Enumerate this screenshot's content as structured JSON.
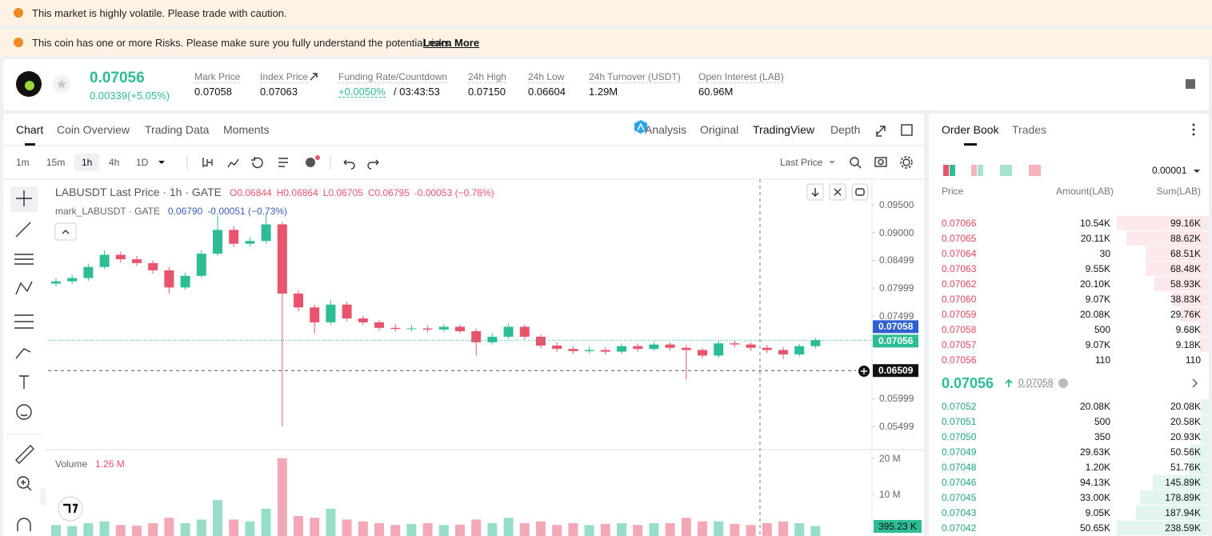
{
  "banners": {
    "volatility": "This market is highly volatile. Please trade with caution.",
    "risk": "This coin has one or more Risks. Please make sure you fully understand the potential risks.",
    "learn_more": "Learn More"
  },
  "ticker": {
    "price": "0.07056",
    "change": "0.00339(+5.05%)",
    "stats": [
      {
        "label": "Mark Price",
        "value": "0.07058"
      },
      {
        "label": "Index Price",
        "value": "0.07063"
      },
      {
        "label": "Funding Rate/Countdown",
        "value": "+0.0050%",
        "countdown": "/ 03:43:53"
      },
      {
        "label": "24h High",
        "value": "0.07150"
      },
      {
        "label": "24h Low",
        "value": "0.06604"
      },
      {
        "label": "24h Turnover (USDT)",
        "value": "1.29M"
      },
      {
        "label": "Open Interest (LAB)",
        "value": "60.96M"
      }
    ]
  },
  "chart_tabs": [
    "Chart",
    "Coin Overview",
    "Trading Data",
    "Moments"
  ],
  "view_tabs": [
    "Analysis",
    "Original",
    "TradingView",
    "Depth"
  ],
  "intervals": [
    "1m",
    "15m",
    "1h",
    "4h",
    "1D"
  ],
  "price_source": "Last Price",
  "chart": {
    "type": "candlestick",
    "legend": {
      "symbol": "LABUSDT Last Price · 1h · GATE",
      "open": "O0.06844",
      "high": "H0.06864",
      "low": "L0.06705",
      "close": "C0.06795",
      "change": "-0.00053 (−0.76%)"
    },
    "mark_legend": {
      "symbol": "mark_LABUSDT · GATE",
      "value": "0.06790",
      "change": "-0.00051 (−0.73%)"
    },
    "up_color": "#2dbd96",
    "down_color": "#e8546b",
    "ylim": [
      0.0511,
      0.0985
    ],
    "yticks": [
      {
        "value": 0.095,
        "label": "0.09500"
      },
      {
        "value": 0.09,
        "label": "0.09000"
      },
      0.08499,
      0.07999,
      0.07499,
      0.05999,
      0.05499
    ],
    "open": [
      0.0808,
      0.0812,
      0.0818,
      0.0838,
      0.086,
      0.0852,
      0.0845,
      0.0832,
      0.0801,
      0.0822,
      0.0862,
      0.0905,
      0.088,
      0.0885,
      0.0915,
      0.079,
      0.0765,
      0.0738,
      0.077,
      0.0745,
      0.0738,
      0.0728,
      0.0726,
      0.0727,
      0.0725,
      0.073,
      0.0722,
      0.0702,
      0.0712,
      0.073,
      0.0712,
      0.0696,
      0.069,
      0.0686,
      0.0688,
      0.0685,
      0.0695,
      0.069,
      0.0698,
      0.0692,
      0.0688,
      0.0678,
      0.07,
      0.0698,
      0.0692,
      0.0688,
      0.068,
      0.0695
    ],
    "high": [
      0.0818,
      0.0824,
      0.0844,
      0.0868,
      0.0866,
      0.0858,
      0.085,
      0.0838,
      0.0828,
      0.0868,
      0.093,
      0.0912,
      0.0892,
      0.0935,
      0.092,
      0.0796,
      0.077,
      0.0778,
      0.0775,
      0.075,
      0.0742,
      0.0734,
      0.0733,
      0.0732,
      0.0735,
      0.0734,
      0.0727,
      0.0718,
      0.0736,
      0.0734,
      0.0716,
      0.0702,
      0.0695,
      0.0694,
      0.0693,
      0.07,
      0.07,
      0.0703,
      0.0702,
      0.0697,
      0.0692,
      0.0705,
      0.0705,
      0.0702,
      0.0697,
      0.0693,
      0.0699,
      0.071
    ],
    "low": [
      0.0803,
      0.0807,
      0.0813,
      0.0834,
      0.0846,
      0.084,
      0.0826,
      0.079,
      0.0797,
      0.0818,
      0.0858,
      0.0874,
      0.0875,
      0.088,
      0.055,
      0.0758,
      0.0718,
      0.0733,
      0.074,
      0.0733,
      0.0723,
      0.0721,
      0.0722,
      0.072,
      0.0721,
      0.0718,
      0.0678,
      0.0698,
      0.0708,
      0.0707,
      0.0691,
      0.0685,
      0.0681,
      0.0682,
      0.068,
      0.0681,
      0.0685,
      0.0686,
      0.0687,
      0.0635,
      0.0673,
      0.0674,
      0.0693,
      0.0687,
      0.0683,
      0.0672,
      0.0676,
      0.0691
    ],
    "close": [
      0.0812,
      0.0818,
      0.0838,
      0.086,
      0.0852,
      0.0845,
      0.0832,
      0.0801,
      0.0822,
      0.0862,
      0.0905,
      0.088,
      0.0885,
      0.0915,
      0.079,
      0.0765,
      0.0738,
      0.077,
      0.0745,
      0.0738,
      0.0728,
      0.0726,
      0.0727,
      0.0725,
      0.073,
      0.0722,
      0.0702,
      0.0712,
      0.073,
      0.0712,
      0.0696,
      0.069,
      0.0686,
      0.0688,
      0.0685,
      0.0695,
      0.069,
      0.0698,
      0.0692,
      0.0688,
      0.0678,
      0.07,
      0.0698,
      0.0692,
      0.0688,
      0.068,
      0.0695,
      0.0706
    ],
    "price_tags": {
      "mark": "0.07058",
      "last": "0.07056",
      "crosshair": "0.06509"
    },
    "volume": {
      "title": "Volume",
      "value": "1.26 M",
      "ylim": [
        0,
        21.5
      ],
      "yticks": [
        {
          "value": 20,
          "label": "20 M"
        },
        {
          "value": 10,
          "label": "10 M"
        }
      ],
      "values": [
        1.5,
        1.2,
        2,
        2.5,
        1.5,
        1.3,
        2,
        3.5,
        2,
        3,
        8.4,
        3,
        2.5,
        6,
        20,
        4,
        3.5,
        6,
        3,
        2.5,
        2,
        1.5,
        1.8,
        2,
        1.5,
        1.6,
        3,
        2,
        3.5,
        2,
        2.5,
        1.5,
        2,
        1.5,
        1.8,
        2,
        1.5,
        2,
        2,
        3.5,
        2.5,
        2.5,
        1.8,
        1.5,
        2,
        2.5,
        2,
        1.2
      ],
      "tag": "395.23 K"
    }
  },
  "order_book": {
    "tabs": [
      "Order Book",
      "Trades"
    ],
    "precision": "0.00001",
    "headers": [
      "Price",
      "Amount(LAB)",
      "Sum(LAB)"
    ],
    "asks": [
      [
        "0.07066",
        "10.54K",
        "99.16K"
      ],
      [
        "0.07065",
        "20.11K",
        "88.62K"
      ],
      [
        "0.07064",
        "30",
        "68.51K"
      ],
      [
        "0.07063",
        "9.55K",
        "68.48K"
      ],
      [
        "0.07062",
        "20.10K",
        "58.93K"
      ],
      [
        "0.07060",
        "9.07K",
        "38.83K"
      ],
      [
        "0.07059",
        "20.08K",
        "29.76K"
      ],
      [
        "0.07058",
        "500",
        "9.68K"
      ],
      [
        "0.07057",
        "9.07K",
        "9.18K"
      ],
      [
        "0.07056",
        "110",
        "110"
      ]
    ],
    "last_price": "0.07056",
    "mark_price": "0.07058",
    "bids": [
      [
        "0.07052",
        "20.08K",
        "20.08K"
      ],
      [
        "0.07051",
        "500",
        "20.58K"
      ],
      [
        "0.07050",
        "350",
        "20.93K"
      ],
      [
        "0.07049",
        "29.63K",
        "50.56K"
      ],
      [
        "0.07048",
        "1.20K",
        "51.76K"
      ],
      [
        "0.07046",
        "94.13K",
        "145.89K"
      ],
      [
        "0.07045",
        "33.00K",
        "178.89K"
      ],
      [
        "0.07043",
        "9.05K",
        "187.94K"
      ],
      [
        "0.07042",
        "50.65K",
        "238.59K"
      ]
    ]
  }
}
